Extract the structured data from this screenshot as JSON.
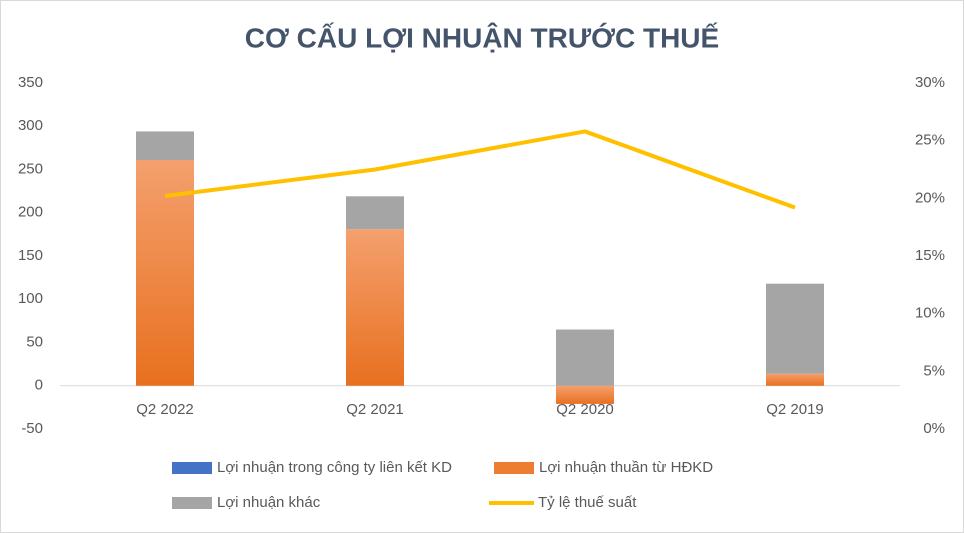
{
  "chart_data": {
    "type": "bar-line",
    "title": "CƠ CẤU LỢI NHUẬN TRƯỚC THUẾ",
    "categories": [
      "Q2 2022",
      "Q2 2021",
      "Q2 2020",
      "Q2 2019"
    ],
    "series": [
      {
        "name": "Lợi nhuận trong công ty liên kết KD",
        "type": "bar",
        "color": "#4472c4",
        "values": [
          0,
          0,
          0,
          0
        ]
      },
      {
        "name": "Lợi nhuận thuần từ HĐKD",
        "type": "bar",
        "color": "#ed7d31",
        "values": [
          261,
          181,
          -21,
          14
        ]
      },
      {
        "name": "Lợi nhuận khác",
        "type": "bar",
        "color": "#a5a5a5",
        "values": [
          33,
          38,
          65,
          104
        ]
      },
      {
        "name": "Tỷ lệ thuế suất",
        "type": "line",
        "axis": "y2",
        "color": "#ffc000",
        "values": [
          20.2,
          22.5,
          25.8,
          19.2
        ]
      }
    ],
    "stacked": true,
    "ylim": [
      -50,
      350
    ],
    "yticks": [
      -50,
      0,
      50,
      100,
      150,
      200,
      250,
      300,
      350
    ],
    "y2lim": [
      0,
      30
    ],
    "y2ticks": [
      {
        "value": 0,
        "label": "0%"
      },
      {
        "value": 5,
        "label": "5%"
      },
      {
        "value": 10,
        "label": "10%"
      },
      {
        "value": 15,
        "label": "15%"
      },
      {
        "value": 20,
        "label": "20%"
      },
      {
        "value": 25,
        "label": "25%"
      },
      {
        "value": 30,
        "label": "30%"
      }
    ],
    "grid": false,
    "legend": "bottom"
  }
}
